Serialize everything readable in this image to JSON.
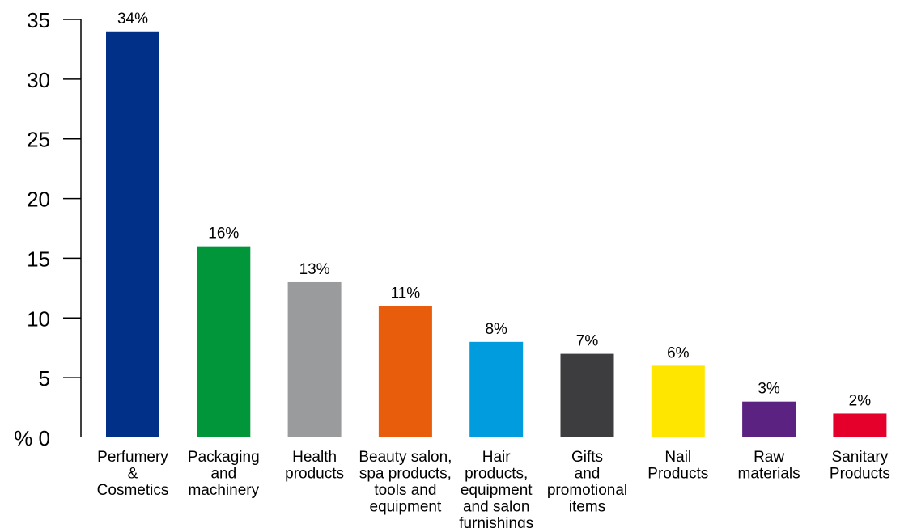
{
  "chart_data": {
    "type": "bar",
    "categories": [
      "Perfumery & Cosmetics",
      "Packaging and machinery",
      "Health products",
      "Beauty salon, spa products, tools and equipment",
      "Hair products, equipment and salon furnishings",
      "Gifts and promotional items",
      "Nail Products",
      "Raw materials",
      "Sanitary Products"
    ],
    "category_label_lines": [
      [
        "Perfumery",
        "&",
        "Cosmetics"
      ],
      [
        "Packaging",
        "and",
        "machinery"
      ],
      [
        "Health",
        "products"
      ],
      [
        "Beauty salon,",
        "spa products,",
        "tools and",
        "equipment"
      ],
      [
        "Hair",
        "products,",
        "equipment",
        "and salon",
        "furnishings"
      ],
      [
        "Gifts",
        "and",
        "promotional",
        "items"
      ],
      [
        "Nail",
        "Products"
      ],
      [
        "Raw",
        "materials"
      ],
      [
        "Sanitary",
        "Products"
      ]
    ],
    "values": [
      34,
      16,
      13,
      11,
      8,
      7,
      6,
      3,
      2
    ],
    "data_labels": [
      "34%",
      "16%",
      "13%",
      "11%",
      "8%",
      "7%",
      "6%",
      "3%",
      "2%"
    ],
    "colors": [
      "#003087",
      "#009639",
      "#9a9b9d",
      "#e85d0c",
      "#009cde",
      "#3d3c3e",
      "#ffe600",
      "#5b2282",
      "#e4002b"
    ],
    "title": "",
    "xlabel": "",
    "ylabel": "",
    "ylim": [
      0,
      35
    ],
    "yticks": [
      0,
      5,
      10,
      15,
      20,
      25,
      30,
      35
    ],
    "ytick_labels": [
      "% 0",
      "5",
      "10",
      "15",
      "20",
      "25",
      "30",
      "35"
    ],
    "grid": false,
    "legend": "none"
  }
}
